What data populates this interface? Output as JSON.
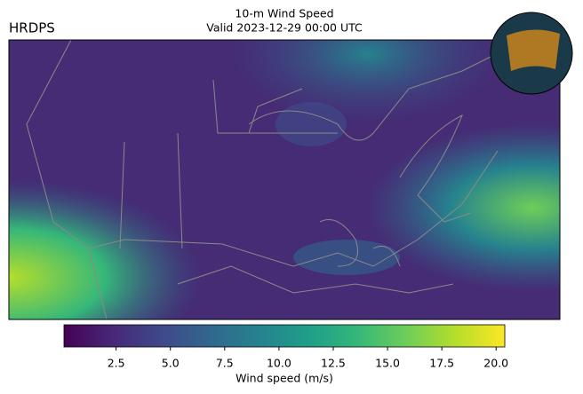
{
  "map": {
    "model_label": "HRDPS",
    "title": "10-m Wind Speed",
    "subtitle": "Valid 2023-12-29 00:00 UTC"
  },
  "colorbar": {
    "label": "Wind speed (m/s)",
    "lim": [
      0.1,
      20.4
    ],
    "ticks": [
      2.5,
      {
        "value": 5,
        "label": "5.0"
      },
      7.5,
      {
        "value": 10,
        "label": "10.0"
      },
      12.5,
      {
        "value": 15,
        "label": "15.0"
      },
      17.5,
      {
        "value": 20,
        "label": "20.0"
      }
    ],
    "colors": [
      "#440154",
      "#482878",
      "#3e4989",
      "#31688e",
      "#26828e",
      "#1f9e89",
      "#35b779",
      "#6ece58",
      "#b5de2b",
      "#fde725"
    ]
  }
}
